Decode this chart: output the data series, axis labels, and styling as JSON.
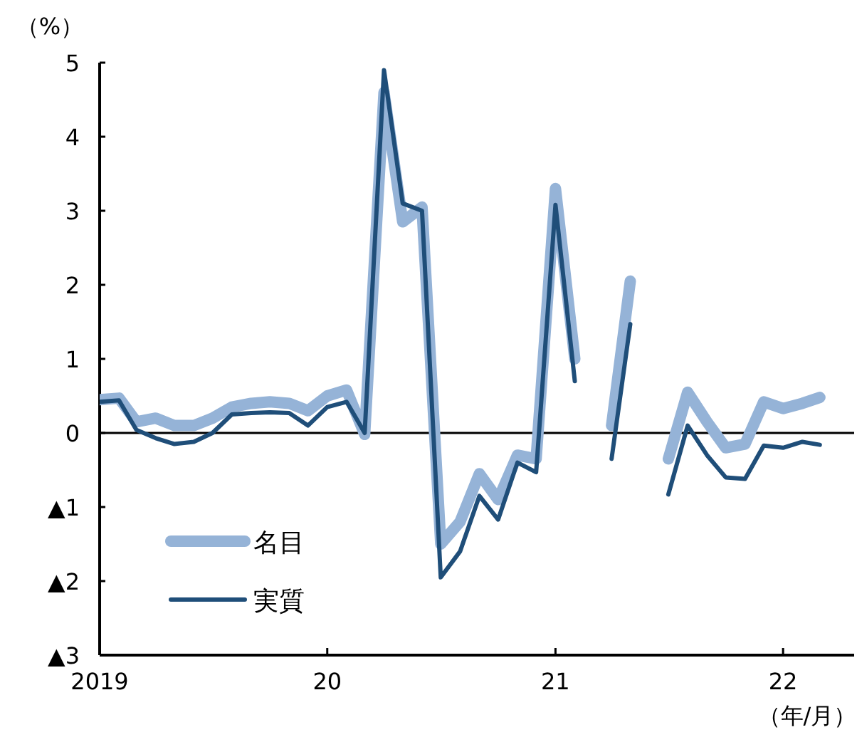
{
  "chart_data": {
    "type": "line",
    "ylabel": "（%）",
    "xlabel": "（年/月）",
    "x": [
      "2019-01",
      "2019-02",
      "2019-03",
      "2019-04",
      "2019-05",
      "2019-06",
      "2019-07",
      "2019-08",
      "2019-09",
      "2019-10",
      "2019-11",
      "2019-12",
      "2020-01",
      "2020-02",
      "2020-03",
      "2020-04",
      "2020-05",
      "2020-06",
      "2020-07",
      "2020-08",
      "2020-09",
      "2020-10",
      "2020-11",
      "2020-12",
      "2021-01",
      "2021-02",
      "2021-03",
      "2021-04",
      "2021-05",
      "2021-06",
      "2021-07",
      "2021-08",
      "2021-09",
      "2021-10",
      "2021-11",
      "2021-12",
      "2022-01",
      "2022-02",
      "2022-03"
    ],
    "series": [
      {
        "name": "名目",
        "color": "#95b3d7",
        "values": [
          0.45,
          0.47,
          0.15,
          0.2,
          0.1,
          0.1,
          0.2,
          0.35,
          0.4,
          0.42,
          0.4,
          0.3,
          0.5,
          0.58,
          -0.02,
          4.6,
          2.85,
          3.05,
          -1.5,
          -1.2,
          -0.55,
          -0.9,
          -0.3,
          -0.35,
          3.3,
          1.0,
          null,
          0.1,
          2.05,
          null,
          -0.35,
          0.55,
          0.15,
          -0.2,
          -0.15,
          0.42,
          0.33,
          0.4,
          0.48
        ]
      },
      {
        "name": "実質",
        "color": "#1f4e79",
        "values": [
          0.42,
          0.44,
          0.04,
          -0.07,
          -0.15,
          -0.12,
          0.0,
          0.25,
          0.27,
          0.28,
          0.27,
          0.1,
          0.35,
          0.42,
          0.0,
          4.9,
          3.1,
          3.0,
          -1.95,
          -1.6,
          -0.85,
          -1.17,
          -0.4,
          -0.53,
          3.08,
          0.7,
          null,
          -0.35,
          1.47,
          null,
          -0.83,
          0.1,
          -0.3,
          -0.6,
          -0.62,
          -0.17,
          -0.2,
          -0.12,
          -0.16
        ]
      }
    ],
    "xlim": [
      "2019-01-01",
      "2022-04-25"
    ],
    "xticks": [
      {
        "value": "2019-01",
        "label": "2019"
      },
      {
        "value": "2020-01",
        "label": "20"
      },
      {
        "value": "2021-01",
        "label": "21"
      },
      {
        "value": "2022-01",
        "label": "22"
      }
    ],
    "ylim": [
      -3,
      5
    ],
    "yticks": [
      {
        "value": -3,
        "label": "▲3"
      },
      {
        "value": -2,
        "label": "▲2"
      },
      {
        "value": -1,
        "label": "▲1"
      },
      0,
      1,
      2,
      3,
      4,
      5
    ],
    "ref_lines": [
      {
        "axis": "y",
        "value": 0,
        "color": "#000000"
      }
    ],
    "legend": "bottom left",
    "grid": false
  }
}
